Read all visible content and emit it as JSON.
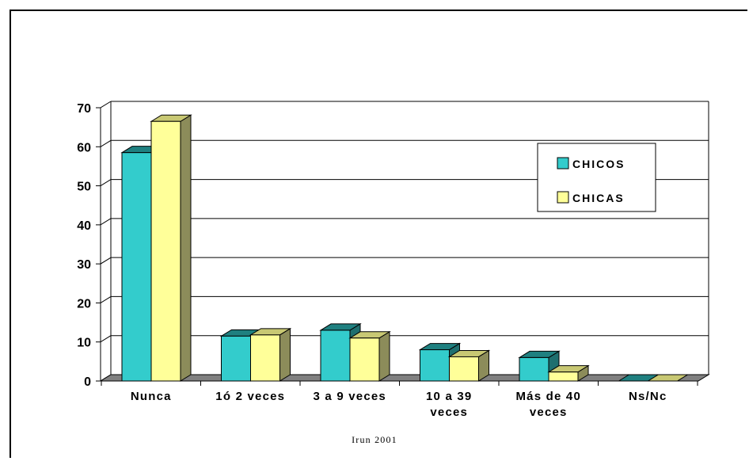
{
  "chart_data": {
    "type": "bar",
    "categories": [
      [
        "Nunca"
      ],
      [
        "1ó 2 veces"
      ],
      [
        "3 a 9 veces"
      ],
      [
        "10 a 39",
        "veces"
      ],
      [
        "Más de 40",
        "veces"
      ],
      [
        "Ns/Nc"
      ]
    ],
    "series": [
      {
        "name": "CHICOS",
        "values": [
          58.5,
          11.5,
          13,
          8,
          6,
          0
        ],
        "color": "#33CCCC",
        "top_color": "#1F8080",
        "side_color": "#1F6F6F"
      },
      {
        "name": "CHICAS",
        "values": [
          66.5,
          11.8,
          11,
          6.2,
          2.3,
          0
        ],
        "color": "#FFFF99",
        "top_color": "#C8C873",
        "side_color": "#8C8C5A"
      }
    ],
    "ylim": [
      0,
      70
    ],
    "yticks": [
      0,
      10,
      20,
      30,
      40,
      50,
      60,
      70
    ],
    "grid": true,
    "legend_position": "top-right",
    "floor_color": "#808080",
    "title": "",
    "xlabel": "",
    "ylabel": ""
  },
  "footer": "Irun 2001"
}
